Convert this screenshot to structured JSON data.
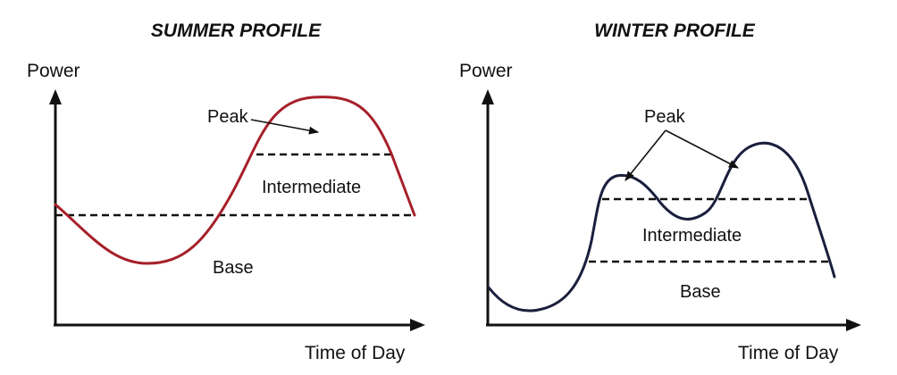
{
  "panels": [
    {
      "title": "SUMMER PROFILE",
      "y_axis_label": "Power",
      "x_axis_label": "Time of Day",
      "regions": {
        "peak": "Peak",
        "intermediate": "Intermediate",
        "base": "Base"
      },
      "curve_color": "#a6202a"
    },
    {
      "title": "WINTER PROFILE",
      "y_axis_label": "Power",
      "x_axis_label": "Time of Day",
      "regions": {
        "peak": "Peak",
        "intermediate": "Intermediate",
        "base": "Base"
      },
      "curve_color": "#1a1f3d"
    }
  ]
}
